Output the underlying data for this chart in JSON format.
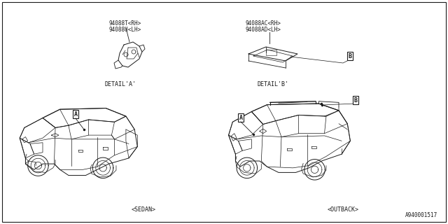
{
  "bg_color": "#ffffff",
  "line_color": "#1a1a1a",
  "text_color": "#1a1a1a",
  "title_bottom": "A940001517",
  "part_label_left_1": "94088T<RH>",
  "part_label_left_2": "94088U<LH>",
  "part_label_right_1": "94088AC<RH>",
  "part_label_right_2": "94088AD<LH>",
  "detail_a_label": "DETAIL'A'",
  "detail_b_label": "DETAIL'B'",
  "sedan_label": "<SEDAN>",
  "outback_label": "<OUTBACK>",
  "callout_a": "A",
  "callout_b": "B",
  "fig_width": 6.4,
  "fig_height": 3.2,
  "dpi": 100
}
